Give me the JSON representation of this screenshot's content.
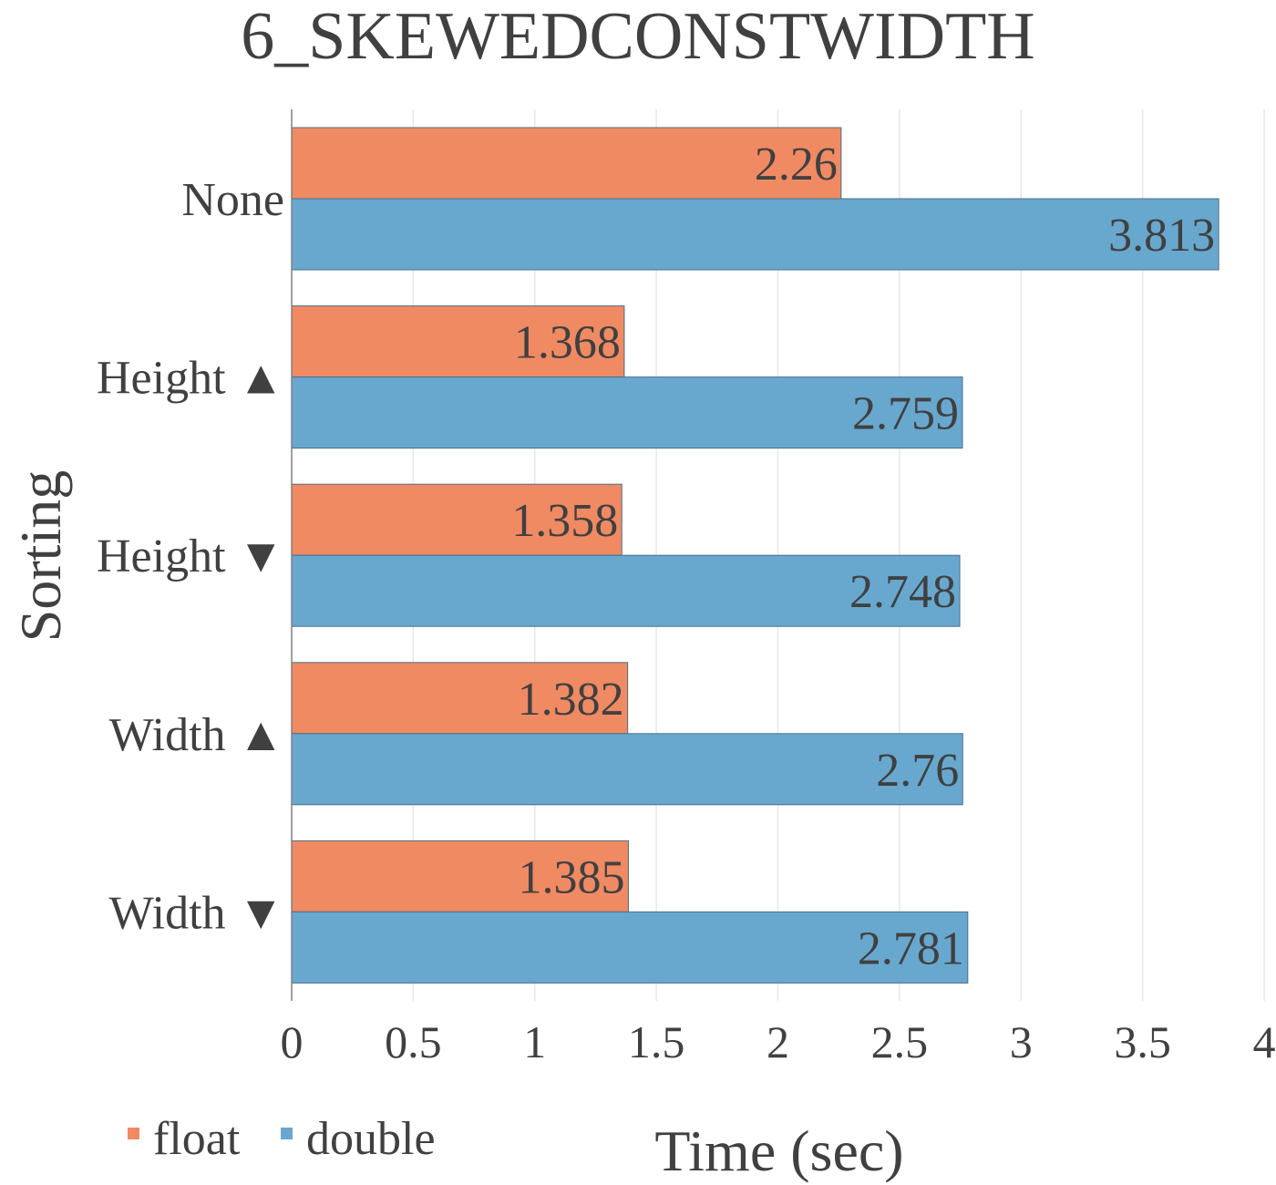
{
  "chart_data": {
    "type": "bar",
    "orientation": "horizontal",
    "title": "6_SKEWEDCONSTWIDTH",
    "xlabel": "Time (sec)",
    "ylabel": "Sorting",
    "categories": [
      "None",
      "Height ▲",
      "Height ▼",
      "Width ▲",
      "Width ▼"
    ],
    "series": [
      {
        "name": "float",
        "color": "#f08a63",
        "values": [
          2.26,
          1.368,
          1.358,
          1.382,
          1.385
        ],
        "labels": [
          "2.26",
          "1.368",
          "1.358",
          "1.382",
          "1.385"
        ]
      },
      {
        "name": "double",
        "color": "#68a8cf",
        "values": [
          3.813,
          2.759,
          2.748,
          2.76,
          2.781
        ],
        "labels": [
          "3.813",
          "2.759",
          "2.748",
          "2.76",
          "2.781"
        ]
      }
    ],
    "xlim": [
      0,
      4
    ],
    "xticks": [
      "0",
      "0.5",
      "1",
      "1.5",
      "2",
      "2.5",
      "3",
      "3.5",
      "4"
    ],
    "grid": true,
    "legend": "bottom-left"
  }
}
